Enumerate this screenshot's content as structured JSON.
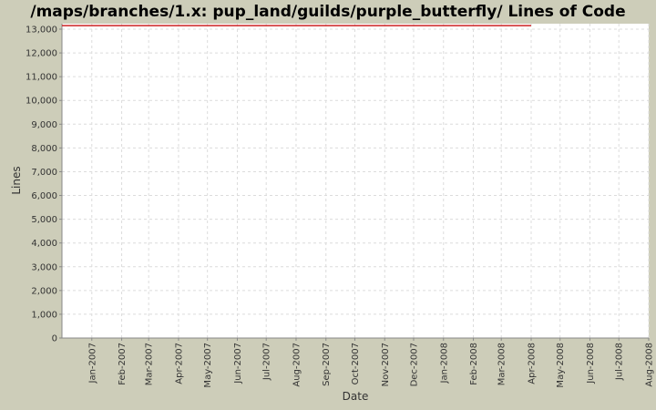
{
  "chart_data": {
    "type": "line",
    "title": "/maps/branches/1.x: pup_land/guilds/purple_butterfly/ Lines of Code",
    "x_label": "Date",
    "y_label": "Lines",
    "x": [
      "2006-12",
      "2008-04"
    ],
    "values": [
      13150,
      13150
    ],
    "color": "#cc2222",
    "xlim": [
      "2006-12",
      "2008-08"
    ],
    "xticks": [
      {
        "value": "2007-01",
        "label": "Jan-2007"
      },
      {
        "value": "2007-02",
        "label": "Feb-2007"
      },
      {
        "value": "2007-03",
        "label": "Mar-2007"
      },
      {
        "value": "2007-04",
        "label": "Apr-2007"
      },
      {
        "value": "2007-05",
        "label": "May-2007"
      },
      {
        "value": "2007-06",
        "label": "Jun-2007"
      },
      {
        "value": "2007-07",
        "label": "Jul-2007"
      },
      {
        "value": "2007-08",
        "label": "Aug-2007"
      },
      {
        "value": "2007-09",
        "label": "Sep-2007"
      },
      {
        "value": "2007-10",
        "label": "Oct-2007"
      },
      {
        "value": "2007-11",
        "label": "Nov-2007"
      },
      {
        "value": "2007-12",
        "label": "Dec-2007"
      },
      {
        "value": "2008-01",
        "label": "Jan-2008"
      },
      {
        "value": "2008-02",
        "label": "Feb-2008"
      },
      {
        "value": "2008-03",
        "label": "Mar-2008"
      },
      {
        "value": "2008-04",
        "label": "Apr-2008"
      },
      {
        "value": "2008-05",
        "label": "May-2008"
      },
      {
        "value": "2008-06",
        "label": "Jun-2008"
      },
      {
        "value": "2008-07",
        "label": "Jul-2008"
      },
      {
        "value": "2008-08",
        "label": "Aug-2008"
      }
    ],
    "ylim": [
      0,
      13230
    ],
    "yticks": [
      0,
      {
        "value": 1000,
        "label": "1,000"
      },
      {
        "value": 2000,
        "label": "2,000"
      },
      {
        "value": 3000,
        "label": "3,000"
      },
      {
        "value": 4000,
        "label": "4,000"
      },
      {
        "value": 5000,
        "label": "5,000"
      },
      {
        "value": 6000,
        "label": "6,000"
      },
      {
        "value": 7000,
        "label": "7,000"
      },
      {
        "value": 8000,
        "label": "8,000"
      },
      {
        "value": 9000,
        "label": "9,000"
      },
      {
        "value": 10000,
        "label": "10,000"
      },
      {
        "value": 11000,
        "label": "11,000"
      },
      {
        "value": 12000,
        "label": "12,000"
      },
      {
        "value": 13000,
        "label": "13,000"
      }
    ],
    "grid": true
  }
}
